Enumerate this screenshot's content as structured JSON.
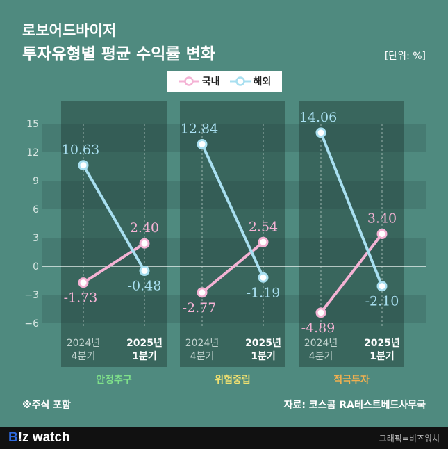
{
  "header": {
    "title_line1": "로보어드바이저",
    "title_line2": "투자유형별 평균 수익률 변화",
    "unit": "[단위: %]"
  },
  "legend": {
    "domestic": "국내",
    "overseas": "해외"
  },
  "footer": {
    "note": "※주식 포함",
    "source": "자료: 코스콤 RA테스트베드사무국",
    "logo_b": "B",
    "logo_rest": "!z watch",
    "credit": "그래픽=비즈워치"
  },
  "colors": {
    "background": "#4f8a7f",
    "domestic": "#f4b2d4",
    "overseas": "#a8dff0",
    "group_label": [
      "#7fe08a",
      "#f0e070",
      "#f0b050"
    ]
  },
  "chart_data": {
    "type": "line",
    "ylim": [
      -6,
      15
    ],
    "yticks": [
      "−6",
      "−3",
      "0",
      "3",
      "6",
      "9",
      "12",
      "15"
    ],
    "ytick_values": [
      -6,
      -3,
      0,
      3,
      6,
      9,
      12,
      15
    ],
    "x_labels": [
      [
        "2024년",
        "4분기"
      ],
      [
        "2025년",
        "1분기"
      ]
    ],
    "groups": [
      {
        "name": "안정추구",
        "domestic": [
          -1.73,
          2.4
        ],
        "overseas": [
          10.63,
          -0.48
        ],
        "domestic_labels": [
          "-1.73",
          "2.40"
        ],
        "overseas_labels": [
          "10.63",
          "-0.48"
        ]
      },
      {
        "name": "위험중립",
        "domestic": [
          -2.77,
          2.54
        ],
        "overseas": [
          12.84,
          -1.19
        ],
        "domestic_labels": [
          "-2.77",
          "2.54"
        ],
        "overseas_labels": [
          "12.84",
          "-1.19"
        ]
      },
      {
        "name": "적극투자",
        "domestic": [
          -4.89,
          3.4
        ],
        "overseas": [
          14.06,
          -2.1
        ],
        "domestic_labels": [
          "-4.89",
          "3.40"
        ],
        "overseas_labels": [
          "14.06",
          "-2.10"
        ]
      }
    ]
  }
}
